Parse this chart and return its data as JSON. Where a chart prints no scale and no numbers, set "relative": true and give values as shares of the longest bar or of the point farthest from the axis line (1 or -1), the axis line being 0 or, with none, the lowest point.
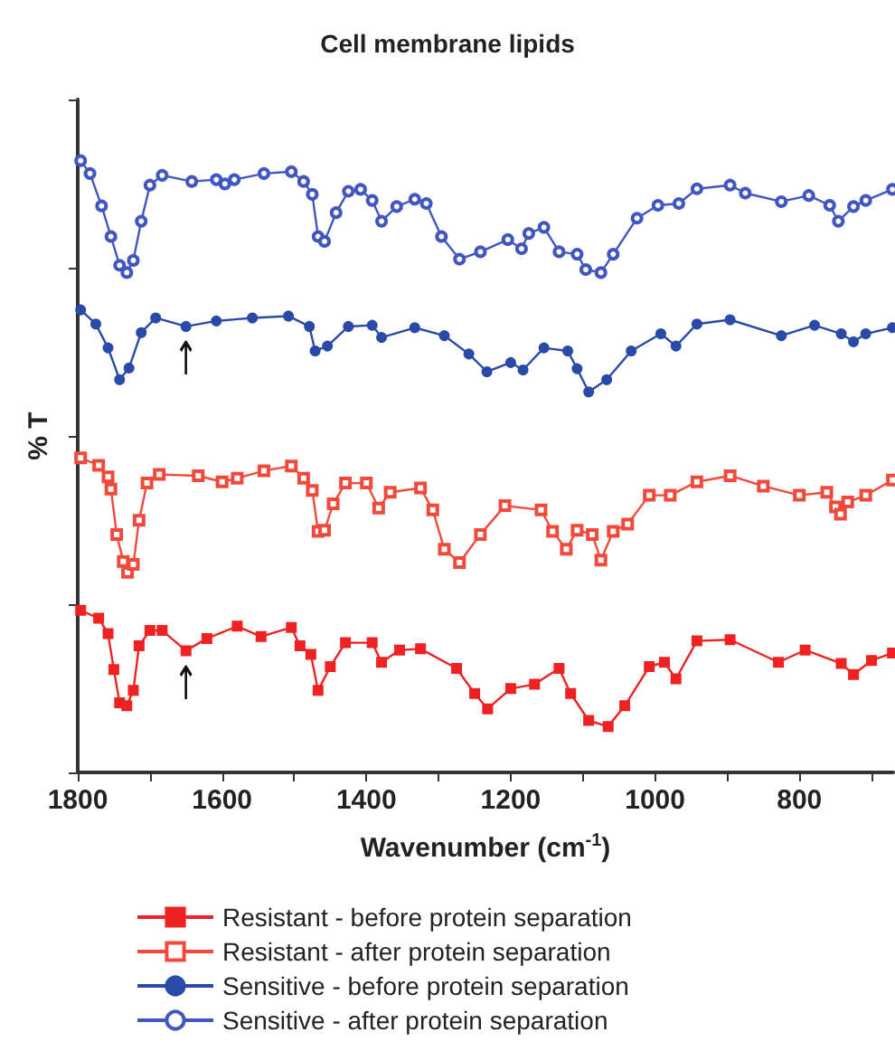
{
  "chart_data": {
    "type": "line",
    "title": "Cell membrane lipids",
    "xlabel": "Wavenumber (cm$^{-1}$)",
    "ylabel": "% T",
    "relative": true,
    "tick_labels": "x",
    "legend": "bottom",
    "line_style": "solid",
    "xlim": [
      1800,
      670
    ],
    "xticks": [
      1800,
      {
        "value": 1700,
        "label": null
      },
      1600,
      {
        "value": 1500,
        "label": null
      },
      1400,
      {
        "value": 1300,
        "label": null
      },
      1200,
      {
        "value": 1100,
        "label": null
      },
      1000,
      {
        "value": 900,
        "label": null
      },
      800,
      {
        "value": 700,
        "label": null
      }
    ],
    "annotations": [
      {
        "text": "↑",
        "x": 1650,
        "y": 0.714
      },
      {
        "text": "↑",
        "x": 1650,
        "y": 0.183
      }
    ],
    "series": [
      {
        "name": "Resistant - before protein separation",
        "color": "#ee2222",
        "marker": "square",
        "x": [
          1796,
          1771,
          1758,
          1750,
          1742,
          1732,
          1723,
          1715,
          1700,
          1683,
          1650,
          1621,
          1579,
          1546,
          1504,
          1492,
          1477,
          1467,
          1450,
          1429,
          1392,
          1379,
          1354,
          1325,
          1275,
          1250,
          1232,
          1200,
          1167,
          1133,
          1117,
          1092,
          1065,
          1042,
          1008,
          987,
          971,
          942,
          896,
          829,
          792,
          742,
          725,
          700,
          671
        ],
        "values": [
          0.265,
          0.252,
          0.227,
          0.168,
          0.114,
          0.109,
          0.134,
          0.207,
          0.232,
          0.232,
          0.199,
          0.219,
          0.239,
          0.222,
          0.237,
          0.207,
          0.193,
          0.134,
          0.173,
          0.212,
          0.212,
          0.18,
          0.2,
          0.202,
          0.17,
          0.129,
          0.104,
          0.137,
          0.144,
          0.17,
          0.129,
          0.085,
          0.075,
          0.109,
          0.173,
          0.18,
          0.153,
          0.215,
          0.217,
          0.18,
          0.2,
          0.178,
          0.16,
          0.183,
          0.195
        ]
      },
      {
        "name": "Resistant - after protein separation",
        "color": "#f04a3c",
        "marker": "square-open",
        "x": [
          1796,
          1771,
          1758,
          1754,
          1746,
          1737,
          1731,
          1723,
          1715,
          1704,
          1687,
          1633,
          1600,
          1579,
          1542,
          1504,
          1487,
          1475,
          1467,
          1458,
          1446,
          1429,
          1400,
          1383,
          1367,
          1325,
          1308,
          1292,
          1271,
          1242,
          1208,
          1158,
          1142,
          1123,
          1108,
          1087,
          1075,
          1058,
          1038,
          1008,
          979,
          942,
          896,
          850,
          800,
          762,
          750,
          743,
          733,
          708,
          671
        ],
        "values": [
          0.514,
          0.502,
          0.483,
          0.463,
          0.389,
          0.345,
          0.327,
          0.34,
          0.412,
          0.473,
          0.487,
          0.485,
          0.475,
          0.481,
          0.493,
          0.501,
          0.481,
          0.461,
          0.394,
          0.396,
          0.439,
          0.473,
          0.473,
          0.432,
          0.458,
          0.465,
          0.429,
          0.365,
          0.343,
          0.389,
          0.436,
          0.429,
          0.394,
          0.365,
          0.396,
          0.389,
          0.347,
          0.394,
          0.406,
          0.453,
          0.453,
          0.475,
          0.485,
          0.468,
          0.453,
          0.458,
          0.434,
          0.422,
          0.442,
          0.453,
          0.478
        ]
      },
      {
        "name": "Sensitive - before protein separation",
        "color": "#2a4aa8",
        "marker": "circle",
        "x": [
          1796,
          1775,
          1758,
          1742,
          1729,
          1712,
          1692,
          1650,
          1608,
          1558,
          1508,
          1479,
          1471,
          1454,
          1425,
          1392,
          1379,
          1333,
          1292,
          1258,
          1233,
          1200,
          1183,
          1154,
          1121,
          1108,
          1092,
          1067,
          1033,
          992,
          971,
          942,
          896,
          825,
          779,
          742,
          725,
          708,
          671
        ],
        "values": [
          0.756,
          0.733,
          0.694,
          0.642,
          0.661,
          0.719,
          0.743,
          0.729,
          0.738,
          0.743,
          0.746,
          0.729,
          0.689,
          0.697,
          0.729,
          0.731,
          0.711,
          0.727,
          0.714,
          0.684,
          0.655,
          0.67,
          0.658,
          0.694,
          0.689,
          0.66,
          0.622,
          0.642,
          0.689,
          0.717,
          0.697,
          0.733,
          0.74,
          0.714,
          0.731,
          0.717,
          0.704,
          0.717,
          0.727
        ]
      },
      {
        "name": "Sensitive - after protein separation",
        "color": "#4256c0",
        "marker": "circle-open",
        "x": [
          1796,
          1783,
          1767,
          1754,
          1742,
          1732,
          1723,
          1712,
          1700,
          1683,
          1642,
          1608,
          1596,
          1583,
          1542,
          1504,
          1487,
          1475,
          1467,
          1458,
          1442,
          1425,
          1408,
          1392,
          1379,
          1358,
          1333,
          1317,
          1296,
          1271,
          1242,
          1204,
          1185,
          1175,
          1154,
          1133,
          1108,
          1096,
          1075,
          1058,
          1025,
          996,
          967,
          942,
          896,
          875,
          825,
          787,
          758,
          746,
          725,
          708,
          671
        ],
        "values": [
          1,
          0.979,
          0.926,
          0.876,
          0.829,
          0.817,
          0.837,
          0.901,
          0.96,
          0.976,
          0.966,
          0.969,
          0.962,
          0.969,
          0.979,
          0.982,
          0.966,
          0.945,
          0.876,
          0.868,
          0.915,
          0.95,
          0.953,
          0.935,
          0.901,
          0.925,
          0.937,
          0.93,
          0.876,
          0.839,
          0.851,
          0.871,
          0.856,
          0.881,
          0.891,
          0.851,
          0.847,
          0.822,
          0.817,
          0.847,
          0.906,
          0.927,
          0.93,
          0.954,
          0.96,
          0.947,
          0.933,
          0.943,
          0.927,
          0.901,
          0.925,
          0.935,
          0.953
        ]
      }
    ]
  }
}
